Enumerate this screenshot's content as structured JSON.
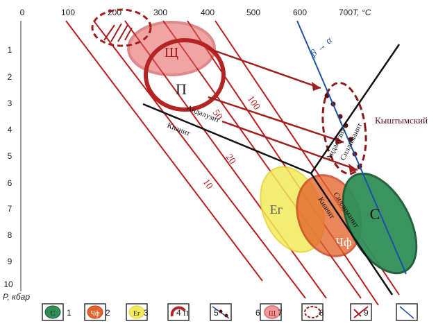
{
  "axes": {
    "t_label": "T, °C",
    "p_label": "P, кбар",
    "t_ticks": [
      "0",
      "100",
      "200",
      "300",
      "400",
      "500",
      "600",
      "700"
    ],
    "p_ticks": [
      "1",
      "2",
      "3",
      "4",
      "5",
      "6",
      "7",
      "8",
      "9",
      "10"
    ]
  },
  "field_labels": {
    "sch": "Щ",
    "p": "П",
    "eg": "Ег",
    "uf": "Чф",
    "c": "С",
    "kyshtym": "Кыштымский"
  },
  "mineral_labels": {
    "andalusite_1": "Андалузит",
    "kyanite_1": "Кианит",
    "andalusite_2": "Андалузит",
    "sillimanite_1": "Силлиманит",
    "sillimanite_2": "Силлиманит",
    "kyanite_2": "Кианит"
  },
  "gradient_labels": [
    "100",
    "50",
    "20",
    "10"
  ],
  "line_label": "β → α",
  "legend": [
    {
      "num": "1",
      "glyph": "С",
      "color": "#2e8b57"
    },
    {
      "num": "2",
      "glyph": "Чф",
      "color": "#e05530"
    },
    {
      "num": "3",
      "glyph": "Ег",
      "color": "#f2e25a"
    },
    {
      "num": "4",
      "glyph": "П",
      "color": "#b32020"
    },
    {
      "num": "5",
      "glyph": "",
      "color": "#2c3e8c"
    },
    {
      "num": "6",
      "glyph": "Щ",
      "color": "#d43a3a"
    },
    {
      "num": "7",
      "glyph": "",
      "color": "#b32020"
    },
    {
      "num": "8",
      "glyph": "",
      "color": "#b32020"
    },
    {
      "num": "9",
      "glyph": "",
      "color": "#b32020"
    },
    {
      "num": "",
      "glyph": "",
      "color": "#2c3e8c"
    }
  ],
  "colors": {
    "gradient_line": "#b81e1e",
    "reaction_line": "#111111",
    "blue_line": "#1f4fa3",
    "arrow": "#a01f1f"
  }
}
